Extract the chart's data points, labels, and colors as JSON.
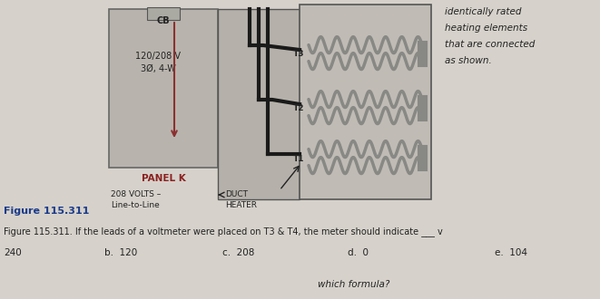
{
  "bg_color": "#cbc7c0",
  "page_bg": "#d6d2cb",
  "panel_box_color": "#b8b4ad",
  "duct_box_color": "#a8a49d",
  "heater_box_color": "#c0bcb5",
  "cb_label": "CB",
  "panel_voltage": "120/208 V",
  "panel_wiring": "3Ø, 4-W",
  "panel_label": "PANEL K",
  "volts_label": "208 VOLTS –",
  "line_label": "Line-to-Line",
  "duct_label": "DUCT",
  "heater_label": "HEATER",
  "t1_label": "T1",
  "t2_label": "T2",
  "t3_label": "T3",
  "right_text_lines": [
    "identically rated",
    "heating elements",
    "that are connected",
    "as shown."
  ],
  "figure_label": "Figure 115.311",
  "question_text": "Figure 115.311. If the leads of a voltmeter were placed on T3 & T4, the meter should indicate ___ v",
  "answer_a": "240",
  "answer_b": "b.  120",
  "answer_c": "c.  208",
  "answer_d": "d.  0",
  "answer_e": "e.  104",
  "bottom_text": "which formula?",
  "dark_text": "#222222",
  "panel_k_color": "#8B2020",
  "figure_label_color": "#1a3a8a",
  "arrow_red": "#8B3030",
  "wire_color": "#1a1a1a",
  "label_color": "#333333"
}
